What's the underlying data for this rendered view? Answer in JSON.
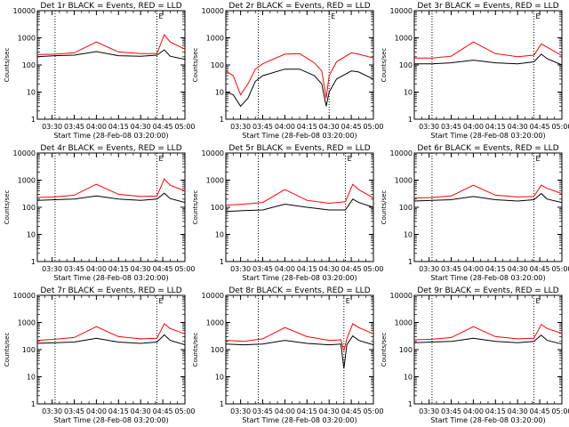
{
  "chart_data": [
    {
      "title": "Det 1r BLACK = Events, RED = LLD",
      "type": "line",
      "xlabel": "Start Time (28-Feb-08 03:20:00)",
      "ylabel": "Counts/sec",
      "xlim": [
        "03:20",
        "05:00"
      ],
      "ylim": [
        1,
        10000
      ],
      "yscale": "log",
      "xticks": [
        "03:30",
        "03:45",
        "04:00",
        "04:15",
        "04:30",
        "04:45",
        "05:00"
      ],
      "yticks": [
        "1",
        "10",
        "100",
        "1000",
        "10000"
      ],
      "vlines": [
        "03:32",
        "04:41"
      ],
      "marker_label": "E",
      "series": [
        {
          "color": "#000000",
          "x": [
            "03:20",
            "03:32",
            "03:45",
            "04:00",
            "04:15",
            "04:30",
            "04:41",
            "04:46",
            "04:50",
            "05:00"
          ],
          "values": [
            200,
            220,
            230,
            310,
            220,
            210,
            230,
            360,
            210,
            160
          ]
        },
        {
          "color": "#ff0000",
          "x": [
            "03:20",
            "03:32",
            "03:45",
            "04:00",
            "04:15",
            "04:30",
            "04:41",
            "04:46",
            "04:50",
            "05:00"
          ],
          "values": [
            240,
            250,
            280,
            700,
            300,
            260,
            260,
            1300,
            700,
            380
          ]
        }
      ]
    },
    {
      "title": "Det 2r BLACK = Events, RED = LLD",
      "type": "line",
      "xlabel": "Start Time (28-Feb-08 03:20:00)",
      "ylabel": "Counts/sec",
      "xlim": [
        "03:20",
        "05:00"
      ],
      "ylim": [
        1,
        10000
      ],
      "yscale": "log",
      "xticks": [
        "03:30",
        "03:45",
        "04:00",
        "04:15",
        "04:30",
        "04:45",
        "05:00"
      ],
      "yticks": [
        "1",
        "10",
        "100",
        "1000",
        "10000"
      ],
      "vlines": [
        "03:42",
        "04:30"
      ],
      "marker_label": "E",
      "series": [
        {
          "color": "#000000",
          "x": [
            "03:20",
            "03:25",
            "03:30",
            "03:35",
            "03:40",
            "03:45",
            "04:00",
            "04:10",
            "04:20",
            "04:25",
            "04:28",
            "04:30",
            "04:35",
            "04:45",
            "04:50",
            "05:00"
          ],
          "values": [
            10,
            8,
            3,
            6,
            25,
            40,
            70,
            70,
            40,
            20,
            3,
            10,
            30,
            60,
            55,
            30
          ]
        },
        {
          "color": "#ff0000",
          "x": [
            "03:20",
            "03:25",
            "03:30",
            "03:35",
            "03:40",
            "03:45",
            "04:00",
            "04:10",
            "04:20",
            "04:25",
            "04:28",
            "04:30",
            "04:35",
            "04:45",
            "04:50",
            "05:00"
          ],
          "values": [
            60,
            40,
            8,
            20,
            70,
            110,
            250,
            260,
            120,
            60,
            6,
            40,
            130,
            280,
            250,
            180
          ]
        }
      ]
    },
    {
      "title": "Det 3r BLACK = Events, RED = LLD",
      "type": "line",
      "xlabel": "Start Time (28-Feb-08 03:20:00)",
      "ylabel": "Counts/sec",
      "xlim": [
        "03:20",
        "05:00"
      ],
      "ylim": [
        1,
        10000
      ],
      "yscale": "log",
      "xticks": [
        "03:30",
        "03:45",
        "04:00",
        "04:15",
        "04:30",
        "04:45",
        "05:00"
      ],
      "yticks": [
        "1",
        "10",
        "100",
        "1000",
        "10000"
      ],
      "vlines": [
        "03:32",
        "04:41"
      ],
      "marker_label": "E",
      "series": [
        {
          "color": "#000000",
          "x": [
            "03:20",
            "03:32",
            "03:45",
            "04:00",
            "04:15",
            "04:30",
            "04:41",
            "04:46",
            "04:50",
            "05:00"
          ],
          "values": [
            110,
            110,
            120,
            150,
            120,
            110,
            130,
            250,
            170,
            100
          ]
        },
        {
          "color": "#ff0000",
          "x": [
            "03:20",
            "03:32",
            "03:45",
            "04:00",
            "04:15",
            "04:30",
            "04:41",
            "04:46",
            "04:50",
            "05:00"
          ],
          "values": [
            180,
            180,
            210,
            700,
            260,
            200,
            230,
            600,
            450,
            220
          ]
        }
      ]
    },
    {
      "title": "Det 4r BLACK = Events, RED = LLD",
      "type": "line",
      "xlabel": "Start Time (28-Feb-08 03:20:00)",
      "ylabel": "Counts/sec",
      "xlim": [
        "03:20",
        "05:00"
      ],
      "ylim": [
        1,
        10000
      ],
      "yscale": "log",
      "xticks": [
        "03:30",
        "03:45",
        "04:00",
        "04:15",
        "04:30",
        "04:45",
        "05:00"
      ],
      "yticks": [
        "1",
        "10",
        "100",
        "1000",
        "10000"
      ],
      "vlines": [
        "03:32",
        "04:41"
      ],
      "marker_label": "E",
      "series": [
        {
          "color": "#000000",
          "x": [
            "03:20",
            "03:32",
            "03:45",
            "04:00",
            "04:15",
            "04:30",
            "04:41",
            "04:46",
            "04:50",
            "05:00"
          ],
          "values": [
            180,
            190,
            200,
            260,
            200,
            180,
            200,
            330,
            210,
            150
          ]
        },
        {
          "color": "#ff0000",
          "x": [
            "03:20",
            "03:32",
            "03:45",
            "04:00",
            "04:15",
            "04:30",
            "04:41",
            "04:46",
            "04:50",
            "05:00"
          ],
          "values": [
            230,
            240,
            280,
            700,
            300,
            250,
            260,
            1100,
            650,
            400
          ]
        }
      ]
    },
    {
      "title": "Det 5r BLACK = Events, RED = LLD",
      "type": "line",
      "xlabel": "Start Time (28-Feb-08 03:20:00)",
      "ylabel": "Counts/sec",
      "xlim": [
        "03:20",
        "05:00"
      ],
      "ylim": [
        1,
        10000
      ],
      "yscale": "log",
      "xticks": [
        "03:30",
        "03:45",
        "04:00",
        "04:15",
        "04:30",
        "04:45",
        "05:00"
      ],
      "yticks": [
        "1",
        "10",
        "100",
        "1000",
        "10000"
      ],
      "vlines": [
        "03:42",
        "04:41"
      ],
      "marker_label": "E",
      "series": [
        {
          "color": "#000000",
          "x": [
            "03:20",
            "03:32",
            "03:45",
            "04:00",
            "04:15",
            "04:30",
            "04:41",
            "04:46",
            "04:50",
            "05:00"
          ],
          "values": [
            70,
            75,
            80,
            130,
            100,
            80,
            80,
            200,
            150,
            100
          ]
        },
        {
          "color": "#ff0000",
          "x": [
            "03:20",
            "03:32",
            "03:45",
            "04:00",
            "04:15",
            "04:30",
            "04:41",
            "04:46",
            "04:50",
            "05:00"
          ],
          "values": [
            120,
            130,
            150,
            450,
            180,
            140,
            160,
            700,
            450,
            220
          ]
        }
      ]
    },
    {
      "title": "Det 6r BLACK = Events, RED = LLD",
      "type": "line",
      "xlabel": "Start Time (28-Feb-08 03:20:00)",
      "ylabel": "Counts/sec",
      "xlim": [
        "03:20",
        "05:00"
      ],
      "ylim": [
        1,
        10000
      ],
      "yscale": "log",
      "xticks": [
        "03:30",
        "03:45",
        "04:00",
        "04:15",
        "04:30",
        "04:45",
        "05:00"
      ],
      "yticks": [
        "1",
        "10",
        "100",
        "1000",
        "10000"
      ],
      "vlines": [
        "03:32",
        "04:41"
      ],
      "marker_label": "E",
      "series": [
        {
          "color": "#000000",
          "x": [
            "03:20",
            "03:32",
            "03:45",
            "04:00",
            "04:15",
            "04:30",
            "04:41",
            "04:46",
            "04:50",
            "05:00"
          ],
          "values": [
            170,
            180,
            190,
            250,
            190,
            170,
            190,
            320,
            200,
            150
          ]
        },
        {
          "color": "#ff0000",
          "x": [
            "03:20",
            "03:32",
            "03:45",
            "04:00",
            "04:15",
            "04:30",
            "04:41",
            "04:46",
            "04:50",
            "05:00"
          ],
          "values": [
            220,
            230,
            260,
            650,
            280,
            240,
            250,
            650,
            500,
            320
          ]
        }
      ]
    },
    {
      "title": "Det 7r BLACK = Events, RED = LLD",
      "type": "line",
      "xlabel": "Start Time (28-Feb-08 03:20:00)",
      "ylabel": "Counts/sec",
      "xlim": [
        "03:20",
        "05:00"
      ],
      "ylim": [
        1,
        10000
      ],
      "yscale": "log",
      "xticks": [
        "03:30",
        "03:45",
        "04:00",
        "04:15",
        "04:30",
        "04:45",
        "05:00"
      ],
      "yticks": [
        "1",
        "10",
        "100",
        "1000",
        "10000"
      ],
      "vlines": [
        "03:32",
        "04:41"
      ],
      "marker_label": "E",
      "series": [
        {
          "color": "#000000",
          "x": [
            "03:20",
            "03:32",
            "03:45",
            "04:00",
            "04:15",
            "04:30",
            "04:41",
            "04:46",
            "04:50",
            "05:00"
          ],
          "values": [
            170,
            180,
            190,
            260,
            190,
            170,
            190,
            350,
            220,
            150
          ]
        },
        {
          "color": "#ff0000",
          "x": [
            "03:20",
            "03:32",
            "03:45",
            "04:00",
            "04:15",
            "04:30",
            "04:41",
            "04:46",
            "04:50",
            "05:00"
          ],
          "values": [
            220,
            240,
            280,
            700,
            300,
            250,
            260,
            900,
            600,
            380
          ]
        }
      ]
    },
    {
      "title": "Det 8r BLACK = Events, RED = LLD",
      "type": "line",
      "xlabel": "Start Time (28-Feb-08 03:20:00)",
      "ylabel": "Counts/sec",
      "xlim": [
        "03:20",
        "05:00"
      ],
      "ylim": [
        1,
        10000
      ],
      "yscale": "log",
      "xticks": [
        "03:30",
        "03:45",
        "04:00",
        "04:15",
        "04:30",
        "04:45",
        "05:00"
      ],
      "yticks": [
        "1",
        "10",
        "100",
        "1000",
        "10000"
      ],
      "vlines": [
        "03:42",
        "04:40"
      ],
      "marker_label": "E",
      "series": [
        {
          "color": "#000000",
          "x": [
            "03:20",
            "03:32",
            "03:45",
            "04:00",
            "04:15",
            "04:30",
            "04:38",
            "04:40",
            "04:42",
            "04:46",
            "04:50",
            "05:00"
          ],
          "values": [
            160,
            150,
            160,
            220,
            170,
            150,
            160,
            20,
            150,
            320,
            220,
            150
          ]
        },
        {
          "color": "#ff0000",
          "x": [
            "03:20",
            "03:32",
            "03:45",
            "04:00",
            "04:15",
            "04:30",
            "04:38",
            "04:40",
            "04:42",
            "04:46",
            "04:50",
            "05:00"
          ],
          "values": [
            220,
            200,
            250,
            650,
            300,
            220,
            230,
            90,
            250,
            900,
            650,
            380
          ]
        }
      ]
    },
    {
      "title": "Det 9r BLACK = Events, RED = LLD",
      "type": "line",
      "xlabel": "Start Time (28-Feb-08 03:20:00)",
      "ylabel": "Counts/sec",
      "xlim": [
        "03:20",
        "05:00"
      ],
      "ylim": [
        1,
        10000
      ],
      "yscale": "log",
      "xticks": [
        "03:30",
        "03:45",
        "04:00",
        "04:15",
        "04:30",
        "04:45",
        "05:00"
      ],
      "yticks": [
        "1",
        "10",
        "100",
        "1000",
        "10000"
      ],
      "vlines": [
        "03:32",
        "04:41"
      ],
      "marker_label": "E",
      "series": [
        {
          "color": "#000000",
          "x": [
            "03:20",
            "03:32",
            "03:45",
            "04:00",
            "04:15",
            "04:30",
            "04:41",
            "04:46",
            "04:50",
            "05:00"
          ],
          "values": [
            180,
            190,
            200,
            260,
            200,
            180,
            200,
            340,
            220,
            160
          ]
        },
        {
          "color": "#ff0000",
          "x": [
            "03:20",
            "03:32",
            "03:45",
            "04:00",
            "04:15",
            "04:30",
            "04:41",
            "04:46",
            "04:50",
            "05:00"
          ],
          "values": [
            230,
            240,
            280,
            700,
            300,
            250,
            260,
            850,
            600,
            400
          ]
        }
      ]
    }
  ]
}
